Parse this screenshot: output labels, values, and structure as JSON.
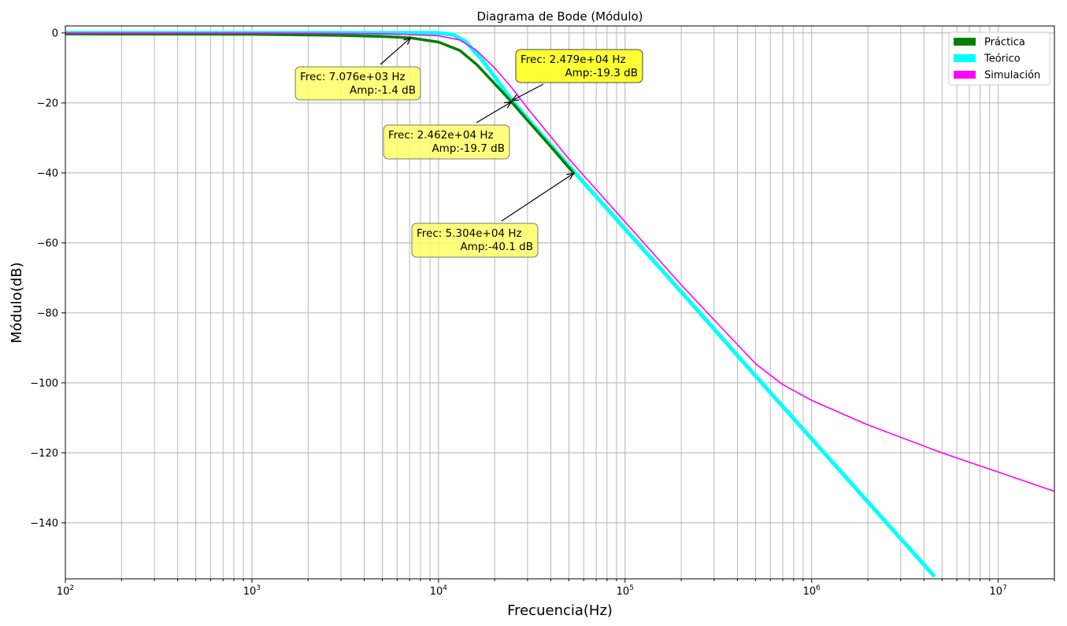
{
  "chart_data": {
    "type": "line",
    "title": "Diagrama de Bode (Módulo)",
    "xlabel": "Frecuencia(Hz)",
    "ylabel": "Módulo(dB)",
    "x_scale": "log",
    "xlim": [
      100,
      20000000
    ],
    "ylim": [
      -156,
      2
    ],
    "x_ticks": [
      {
        "value": 100,
        "base": "10",
        "exp": "2"
      },
      {
        "value": 1000,
        "base": "10",
        "exp": "3"
      },
      {
        "value": 10000,
        "base": "10",
        "exp": "4"
      },
      {
        "value": 100000,
        "base": "10",
        "exp": "5"
      },
      {
        "value": 1000000,
        "base": "10",
        "exp": "6"
      },
      {
        "value": 10000000,
        "base": "10",
        "exp": "7"
      }
    ],
    "y_ticks": [
      {
        "value": 0,
        "label": "0"
      },
      {
        "value": -20,
        "label": "−20"
      },
      {
        "value": -40,
        "label": "−40"
      },
      {
        "value": -60,
        "label": "−60"
      },
      {
        "value": -80,
        "label": "−80"
      },
      {
        "value": -100,
        "label": "−100"
      },
      {
        "value": -120,
        "label": "−120"
      },
      {
        "value": -140,
        "label": "−140"
      }
    ],
    "grid": true,
    "legend_position": "top-right",
    "series": [
      {
        "name": "Práctica",
        "color": "#008000",
        "x": [
          100,
          1000,
          3000,
          5000,
          7076,
          10000,
          13000,
          16000,
          20000,
          24620,
          30000,
          40000,
          53040
        ],
        "y": [
          -0.3,
          -0.4,
          -0.7,
          -1.0,
          -1.4,
          -2.6,
          -5,
          -9,
          -14.5,
          -19.7,
          -25,
          -32.5,
          -40.1
        ]
      },
      {
        "name": "Teórico",
        "color": "#00ffff",
        "x": [
          100,
          1000,
          5000,
          10000,
          12000,
          14000,
          17000,
          20000,
          24790,
          30000,
          50000,
          100000,
          200000,
          500000,
          1000000,
          2000000,
          4500000
        ],
        "y": [
          0,
          0,
          0,
          0,
          -0.5,
          -2.5,
          -7.5,
          -12.5,
          -19.3,
          -24.5,
          -38,
          -56,
          -74,
          -98,
          -116,
          -134,
          -155
        ]
      },
      {
        "name": "Simulación",
        "color": "#ff00ff",
        "x": [
          100,
          1000,
          5000,
          10000,
          13000,
          16000,
          20000,
          25000,
          30000,
          50000,
          100000,
          200000,
          300000,
          500000,
          700000,
          1000000,
          2000000,
          5000000,
          10000000,
          20000000
        ],
        "y": [
          0,
          0,
          -0.2,
          -0.8,
          -2,
          -5,
          -10,
          -16,
          -21.5,
          -36,
          -54,
          -72,
          -82,
          -94.5,
          -100.5,
          -105,
          -112,
          -120,
          -125.5,
          -131
        ]
      }
    ],
    "annotations": [
      {
        "line1": "Frec: 7.076e+03  Hz",
        "line2": "Amp:-1.4 dB",
        "target": [
          7076,
          -1.4
        ],
        "style": "light"
      },
      {
        "line1": "Frec: 2.479e+04  Hz",
        "line2": "Amp:-19.3 dB",
        "target": [
          24790,
          -19.3
        ],
        "style": "strong"
      },
      {
        "line1": "Frec: 2.462e+04  Hz",
        "line2": "Amp:-19.7 dB",
        "target": [
          24620,
          -19.7
        ],
        "style": "light"
      },
      {
        "line1": "Frec: 5.304e+04  Hz",
        "line2": "Amp:-40.1 dB",
        "target": [
          53040,
          -40.1
        ],
        "style": "light"
      }
    ]
  }
}
